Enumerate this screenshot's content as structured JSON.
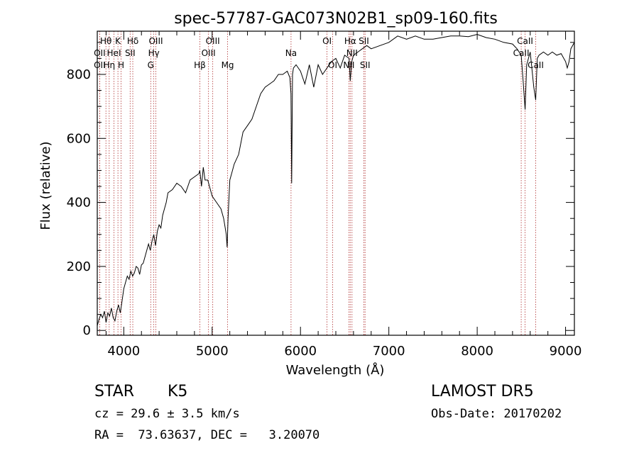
{
  "chart_data": {
    "type": "line",
    "title": "spec-57787-GAC073N02B1_sp09-160.fits",
    "xlabel": "Wavelength (Å)",
    "ylabel": "Flux (relative)",
    "xlim": [
      3700,
      9100
    ],
    "ylim": [
      -15,
      935
    ],
    "xticks": [
      4000,
      5000,
      6000,
      7000,
      8000,
      9000
    ],
    "yticks": [
      0,
      200,
      400,
      600,
      800
    ],
    "grid": false,
    "series": [
      {
        "color": "#000000",
        "x": [
          3700,
          3720,
          3740,
          3760,
          3780,
          3800,
          3820,
          3840,
          3860,
          3880,
          3900,
          3920,
          3940,
          3960,
          3980,
          4000,
          4020,
          4040,
          4060,
          4080,
          4100,
          4120,
          4140,
          4160,
          4180,
          4200,
          4220,
          4240,
          4260,
          4280,
          4300,
          4320,
          4340,
          4360,
          4380,
          4400,
          4420,
          4440,
          4460,
          4480,
          4500,
          4550,
          4600,
          4650,
          4700,
          4750,
          4800,
          4850,
          4860,
          4880,
          4900,
          4920,
          4950,
          5000,
          5050,
          5100,
          5130,
          5160,
          5170,
          5180,
          5190,
          5200,
          5220,
          5250,
          5300,
          5350,
          5400,
          5450,
          5500,
          5550,
          5600,
          5650,
          5700,
          5750,
          5800,
          5850,
          5880,
          5892,
          5900,
          5910,
          5920,
          5950,
          6000,
          6050,
          6100,
          6150,
          6200,
          6250,
          6300,
          6350,
          6400,
          6450,
          6500,
          6550,
          6563,
          6580,
          6600,
          6650,
          6700,
          6750,
          6800,
          6900,
          7000,
          7100,
          7200,
          7300,
          7400,
          7500,
          7600,
          7700,
          7800,
          7900,
          8000,
          8100,
          8200,
          8300,
          8400,
          8450,
          8498,
          8520,
          8542,
          8560,
          8600,
          8640,
          8662,
          8680,
          8700,
          8750,
          8800,
          8850,
          8900,
          8950,
          9000,
          9020,
          9040,
          9060,
          9080,
          9100
        ],
        "y": [
          15,
          35,
          50,
          40,
          60,
          25,
          55,
          45,
          70,
          40,
          30,
          60,
          80,
          55,
          90,
          130,
          150,
          170,
          160,
          185,
          170,
          180,
          200,
          195,
          175,
          205,
          210,
          230,
          250,
          270,
          250,
          280,
          300,
          265,
          310,
          330,
          320,
          360,
          380,
          400,
          430,
          440,
          460,
          450,
          430,
          470,
          480,
          490,
          500,
          450,
          510,
          470,
          470,
          420,
          400,
          380,
          350,
          300,
          260,
          350,
          410,
          470,
          490,
          520,
          550,
          620,
          640,
          660,
          700,
          740,
          760,
          770,
          780,
          800,
          800,
          810,
          790,
          740,
          460,
          800,
          820,
          830,
          810,
          770,
          830,
          760,
          830,
          800,
          820,
          840,
          850,
          820,
          860,
          850,
          780,
          840,
          860,
          870,
          880,
          890,
          880,
          890,
          900,
          920,
          910,
          920,
          910,
          910,
          915,
          920,
          920,
          918,
          925,
          915,
          910,
          900,
          895,
          880,
          860,
          780,
          690,
          830,
          870,
          760,
          720,
          850,
          860,
          870,
          860,
          870,
          860,
          865,
          840,
          820,
          840,
          880,
          890,
          900
        ]
      }
    ],
    "lines": [
      {
        "label": "Hθ",
        "x": 3798,
        "row": 1
      },
      {
        "label": "K",
        "x": 3934,
        "row": 1
      },
      {
        "label": "Hδ",
        "x": 4102,
        "row": 1
      },
      {
        "label": "OIII",
        "x": 4363,
        "row": 1
      },
      {
        "label": "OIII",
        "x": 5007,
        "row": 1
      },
      {
        "label": "OI",
        "x": 6300,
        "row": 1
      },
      {
        "label": "Hα",
        "x": 6563,
        "row": 1
      },
      {
        "label": "SII",
        "x": 6717,
        "row": 1
      },
      {
        "label": "CaII",
        "x": 8542,
        "row": 1
      },
      {
        "label": "OII",
        "x": 3727,
        "row": 2
      },
      {
        "label": "HeI",
        "x": 3889,
        "row": 2
      },
      {
        "label": "SII",
        "x": 4072,
        "row": 2
      },
      {
        "label": "Hγ",
        "x": 4340,
        "row": 2
      },
      {
        "label": "OIII",
        "x": 4959,
        "row": 2
      },
      {
        "label": "Na",
        "x": 5893,
        "row": 2
      },
      {
        "label": "NII",
        "x": 6583,
        "row": 2
      },
      {
        "label": "CaII",
        "x": 8498,
        "row": 2
      },
      {
        "label": "OII",
        "x": 3727,
        "row": 3
      },
      {
        "label": "Hη",
        "x": 3835,
        "row": 3
      },
      {
        "label": "H",
        "x": 3969,
        "row": 3
      },
      {
        "label": "G",
        "x": 4305,
        "row": 3
      },
      {
        "label": "Hβ",
        "x": 4861,
        "row": 3
      },
      {
        "label": "Mg",
        "x": 5175,
        "row": 3
      },
      {
        "label": "OI",
        "x": 6364,
        "row": 3
      },
      {
        "label": "NII",
        "x": 6548,
        "row": 3
      },
      {
        "label": "SII",
        "x": 6731,
        "row": 3
      },
      {
        "label": "CaII",
        "x": 8662,
        "row": 3
      }
    ]
  },
  "info": {
    "object_class": "STAR",
    "subclass": "K5",
    "survey": "LAMOST DR5",
    "cz": "cz = 29.6 ± 3.5 km/s",
    "obs_date": "Obs-Date: 20170202",
    "radec": "RA =  73.63637, DEC =   3.20070"
  },
  "colors": {
    "axes": "#000000",
    "spectrum": "#000000",
    "line_markers": "#b03030"
  }
}
